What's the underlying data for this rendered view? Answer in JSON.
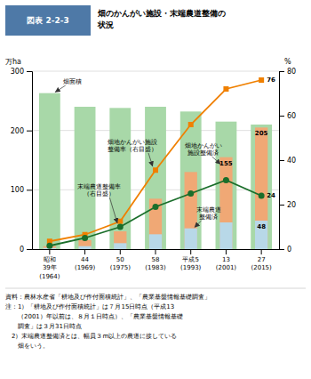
{
  "chart_data": {
    "type": "bar",
    "title": "畑のかんがい施設・末端農道整備の\n状況",
    "annotations": [
      "図表 2-2-3",
      "資料：農林水産省「耕地及び作付面積統計」、「農業基盤情報基礎調査」",
      "注：1）「耕地及び作付面積統計」は７月15日時点（平成13",
      "　　（2001）年以前は、８月１日時点）、「農業基盤情報基礎",
      "　　調査」は３月31日時点",
      "　2）末端農道整備済とは、幅員３m以上の農道に接している",
      "　　畑をいう。"
    ],
    "categories": [
      "昭和\n39年\n(1964)",
      "44\n(1969)",
      "50\n(1975)",
      "58\n(1983)",
      "平成5\n(1993)",
      "13\n(2001)",
      "27\n(2015)"
    ],
    "y_label": "万ha",
    "y2_label": "%",
    "ylim": [
      0,
      300
    ],
    "yticks": [
      0,
      100,
      200,
      300
    ],
    "y2lim": [
      0,
      80
    ],
    "y2ticks": [
      0,
      20,
      40,
      60,
      80
    ],
    "grid": true,
    "series": [
      {
        "name": "畑面積",
        "type": "bar",
        "color": "#a8d8a8",
        "values": [
          263,
          240,
          238,
          240,
          232,
          215,
          210
        ]
      },
      {
        "name": "畑地かんがい\n施設整備済",
        "type": "bar",
        "color": "#f0a875",
        "values": [
          5,
          15,
          30,
          85,
          130,
          155,
          205
        ],
        "value_labels": [
          null,
          null,
          null,
          null,
          null,
          "155",
          "205"
        ]
      },
      {
        "name": "末端農道\n整備済",
        "type": "bar",
        "color": "#b8d8e8",
        "values": [
          2,
          5,
          10,
          25,
          35,
          45,
          48
        ],
        "value_labels": [
          null,
          null,
          null,
          null,
          null,
          null,
          "48"
        ]
      },
      {
        "name": "畑地かんがい施設\n整備率（右目盛）",
        "type": "line",
        "axis": "y2",
        "color": "#f08000",
        "marker": "square",
        "values": [
          3.5,
          6.5,
          12.5,
          35.5,
          56.0,
          72.0,
          76.0
        ],
        "value_labels": [
          null,
          null,
          null,
          null,
          null,
          null,
          "76"
        ]
      },
      {
        "name": "末端農道整備率\n（右目盛）",
        "type": "line",
        "axis": "y2",
        "color": "#1a6e2a",
        "marker": "circle",
        "values": [
          1.5,
          5.0,
          10.0,
          19.0,
          25.0,
          31.0,
          24.0
        ],
        "value_labels": [
          null,
          null,
          null,
          null,
          null,
          null,
          "24"
        ]
      }
    ]
  }
}
